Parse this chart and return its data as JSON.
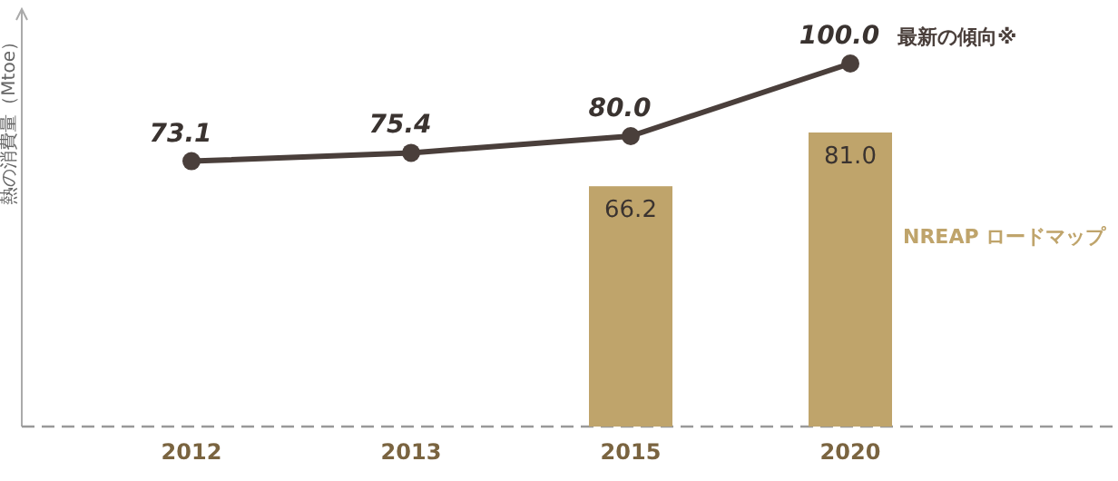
{
  "chart_data": {
    "type": "bar",
    "ylabel": "熱の消費量（Mtoe）",
    "categories": [
      "2012",
      "2013",
      "2015",
      "2020"
    ],
    "ylim": [
      0,
      115
    ],
    "series": [
      {
        "name": "NREAP ロードマップ",
        "color": "#bfa46b",
        "values": [
          null,
          null,
          66.2,
          81.0
        ],
        "value_labels": [
          null,
          null,
          "66.2",
          "81.0"
        ]
      },
      {
        "type": "line",
        "name": "最新の傾向※",
        "color": "#4a3f3b",
        "marker": "circle",
        "values": [
          73.1,
          75.4,
          80.0,
          100.0
        ],
        "value_labels": [
          "73.1",
          "75.4",
          "80.0",
          "100.0"
        ]
      }
    ]
  }
}
